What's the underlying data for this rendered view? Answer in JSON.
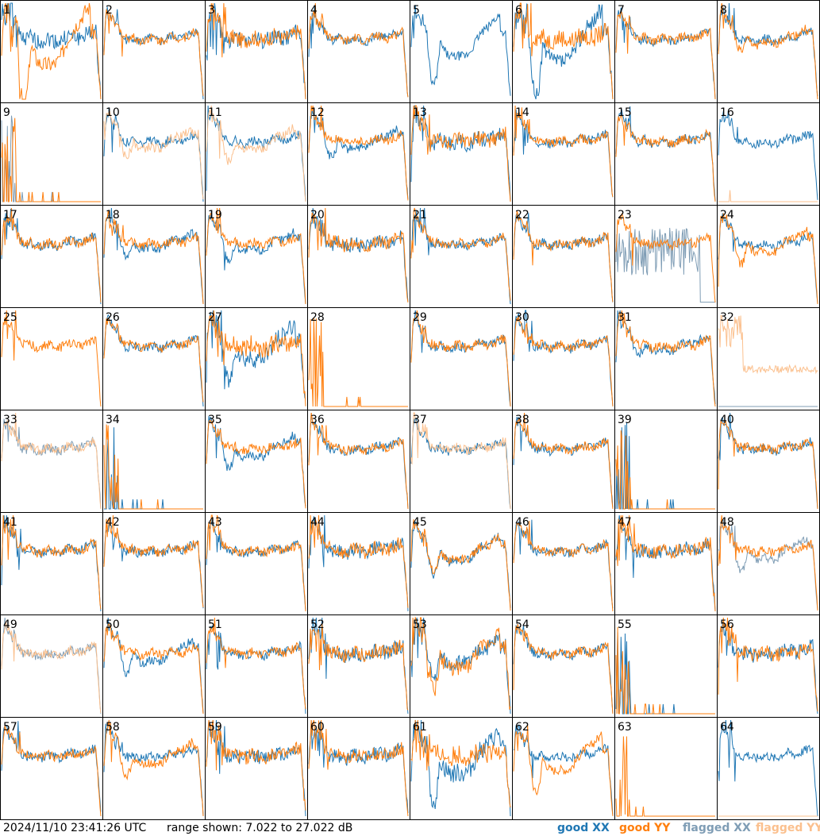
{
  "footer": {
    "timestamp": "2024/11/10 23:41:26 UTC",
    "range_text": "range shown: 7.022 to 27.022 dB"
  },
  "legend": {
    "good_xx": "good XX",
    "good_yy": "good YY",
    "flagged_xx": "flagged XX",
    "flagged_yy": "flagged YY"
  },
  "colors": {
    "good_xx": "#1f77b4",
    "good_yy": "#ff7f0e",
    "flagged_xx": "#7f9db5",
    "flagged_yy": "#fbc08e",
    "grid_line": "#000000"
  },
  "chart_data": {
    "type": "line",
    "grid": "8x8 small-multiple spectra",
    "ylim": [
      7.022,
      27.022
    ],
    "panels": [
      {
        "id": "1",
        "shape": "std",
        "xx": "good",
        "yy": "good",
        "dip_yy": 0.85,
        "noise": 0.6
      },
      {
        "id": "2",
        "shape": "std",
        "xx": "good",
        "yy": "good"
      },
      {
        "id": "3",
        "shape": "std",
        "xx": "good",
        "yy": "good",
        "noise": 0.6
      },
      {
        "id": "4",
        "shape": "std",
        "xx": "good",
        "yy": "good"
      },
      {
        "id": "5",
        "shape": "dip",
        "xx": "good",
        "yy": "none",
        "dip_xx": 0.6
      },
      {
        "id": "6",
        "shape": "dip",
        "xx": "good",
        "yy": "good",
        "dip_xx": 0.75,
        "noise": 0.7
      },
      {
        "id": "7",
        "shape": "std",
        "xx": "good",
        "yy": "good"
      },
      {
        "id": "8",
        "shape": "std",
        "xx": "good",
        "yy": "good",
        "dip_yy": 0.2
      },
      {
        "id": "9",
        "shape": "spiky",
        "xx": "flagged",
        "yy": "good"
      },
      {
        "id": "10",
        "shape": "dip",
        "xx": "good",
        "yy": "flagged",
        "dip_yy": 0.25
      },
      {
        "id": "11",
        "shape": "dip",
        "xx": "good",
        "yy": "flagged",
        "dip_yy": 0.3
      },
      {
        "id": "12",
        "shape": "dip",
        "xx": "good",
        "yy": "good",
        "dip_xx": 0.25
      },
      {
        "id": "13",
        "shape": "std",
        "xx": "good",
        "yy": "good",
        "noise": 0.6
      },
      {
        "id": "14",
        "shape": "std",
        "xx": "good",
        "yy": "good"
      },
      {
        "id": "15",
        "shape": "std",
        "xx": "good",
        "yy": "good"
      },
      {
        "id": "16",
        "shape": "std",
        "xx": "good",
        "yy": "flagged_dead"
      },
      {
        "id": "17",
        "shape": "std",
        "xx": "good",
        "yy": "good"
      },
      {
        "id": "18",
        "shape": "dip",
        "xx": "good",
        "yy": "good",
        "dip_xx": 0.2
      },
      {
        "id": "19",
        "shape": "dip",
        "xx": "good",
        "yy": "good",
        "dip_xx": 0.25
      },
      {
        "id": "20",
        "shape": "std",
        "xx": "good",
        "yy": "good",
        "noise": 0.5
      },
      {
        "id": "21",
        "shape": "std",
        "xx": "good",
        "yy": "good"
      },
      {
        "id": "22",
        "shape": "std",
        "xx": "good",
        "yy": "good"
      },
      {
        "id": "23",
        "shape": "noisy",
        "xx": "flagged",
        "yy": "good"
      },
      {
        "id": "24",
        "shape": "dip",
        "xx": "good",
        "yy": "good",
        "dip_yy": 0.3
      },
      {
        "id": "25",
        "shape": "std",
        "xx": "none",
        "yy": "good"
      },
      {
        "id": "26",
        "shape": "std",
        "xx": "good",
        "yy": "good"
      },
      {
        "id": "27",
        "shape": "dip",
        "xx": "good",
        "yy": "good",
        "dip_xx": 0.5,
        "noise": 0.8
      },
      {
        "id": "28",
        "shape": "spiky",
        "xx": "none",
        "yy": "good"
      },
      {
        "id": "29",
        "shape": "std",
        "xx": "good",
        "yy": "good"
      },
      {
        "id": "30",
        "shape": "std",
        "xx": "good",
        "yy": "good"
      },
      {
        "id": "31",
        "shape": "std",
        "xx": "good",
        "yy": "good",
        "dip_xx": 0.15
      },
      {
        "id": "32",
        "shape": "spiky_high",
        "xx": "flagged_dead",
        "yy": "flagged"
      },
      {
        "id": "33",
        "shape": "std",
        "xx": "flagged",
        "yy": "flagged"
      },
      {
        "id": "34",
        "shape": "spiky",
        "xx": "good",
        "yy": "good"
      },
      {
        "id": "35",
        "shape": "dip",
        "xx": "good",
        "yy": "good",
        "dip_xx": 0.3
      },
      {
        "id": "36",
        "shape": "std",
        "xx": "good",
        "yy": "good"
      },
      {
        "id": "37",
        "shape": "std",
        "xx": "good",
        "yy": "flagged"
      },
      {
        "id": "38",
        "shape": "std",
        "xx": "good",
        "yy": "good"
      },
      {
        "id": "39",
        "shape": "spiky",
        "xx": "good",
        "yy": "good"
      },
      {
        "id": "40",
        "shape": "std",
        "xx": "good",
        "yy": "good"
      },
      {
        "id": "41",
        "shape": "std",
        "xx": "good",
        "yy": "good"
      },
      {
        "id": "42",
        "shape": "std",
        "xx": "good",
        "yy": "good"
      },
      {
        "id": "43",
        "shape": "std",
        "xx": "good",
        "yy": "good"
      },
      {
        "id": "44",
        "shape": "std",
        "xx": "good",
        "yy": "good",
        "noise": 0.5
      },
      {
        "id": "45",
        "shape": "dip",
        "xx": "good",
        "yy": "good",
        "dip_xx": 0.35,
        "dip_yy": 0.3
      },
      {
        "id": "46",
        "shape": "std",
        "xx": "good",
        "yy": "good"
      },
      {
        "id": "47",
        "shape": "std",
        "xx": "good",
        "yy": "good",
        "noise": 0.5
      },
      {
        "id": "48",
        "shape": "dip",
        "xx": "flagged",
        "yy": "good",
        "dip_xx": 0.3
      },
      {
        "id": "49",
        "shape": "std",
        "xx": "flagged",
        "yy": "flagged"
      },
      {
        "id": "50",
        "shape": "dip",
        "xx": "good",
        "yy": "good",
        "dip_xx": 0.3
      },
      {
        "id": "51",
        "shape": "std",
        "xx": "good",
        "yy": "good"
      },
      {
        "id": "52",
        "shape": "std",
        "xx": "good",
        "yy": "good",
        "noise": 0.5
      },
      {
        "id": "53",
        "shape": "dip",
        "xx": "good",
        "yy": "good",
        "dip_xx": 0.35,
        "dip_yy": 0.5,
        "noise": 0.6
      },
      {
        "id": "54",
        "shape": "std",
        "xx": "good",
        "yy": "good"
      },
      {
        "id": "55",
        "shape": "spiky",
        "xx": "good",
        "yy": "good"
      },
      {
        "id": "56",
        "shape": "std",
        "xx": "good",
        "yy": "good",
        "noise": 0.5
      },
      {
        "id": "57",
        "shape": "std",
        "xx": "good",
        "yy": "good"
      },
      {
        "id": "58",
        "shape": "dip",
        "xx": "good",
        "yy": "good",
        "dip_yy": 0.3
      },
      {
        "id": "59",
        "shape": "std",
        "xx": "good",
        "yy": "good",
        "noise": 0.5
      },
      {
        "id": "60",
        "shape": "std",
        "xx": "good",
        "yy": "good",
        "noise": 0.5
      },
      {
        "id": "61",
        "shape": "dip",
        "xx": "good",
        "yy": "good",
        "dip_xx": 0.6,
        "noise": 0.8
      },
      {
        "id": "62",
        "shape": "dip",
        "xx": "good",
        "yy": "good",
        "dip_yy": 0.5
      },
      {
        "id": "63",
        "shape": "spiky",
        "xx": "none",
        "yy": "good"
      },
      {
        "id": "64",
        "shape": "std",
        "xx": "good",
        "yy": "flagged_dead"
      }
    ]
  }
}
